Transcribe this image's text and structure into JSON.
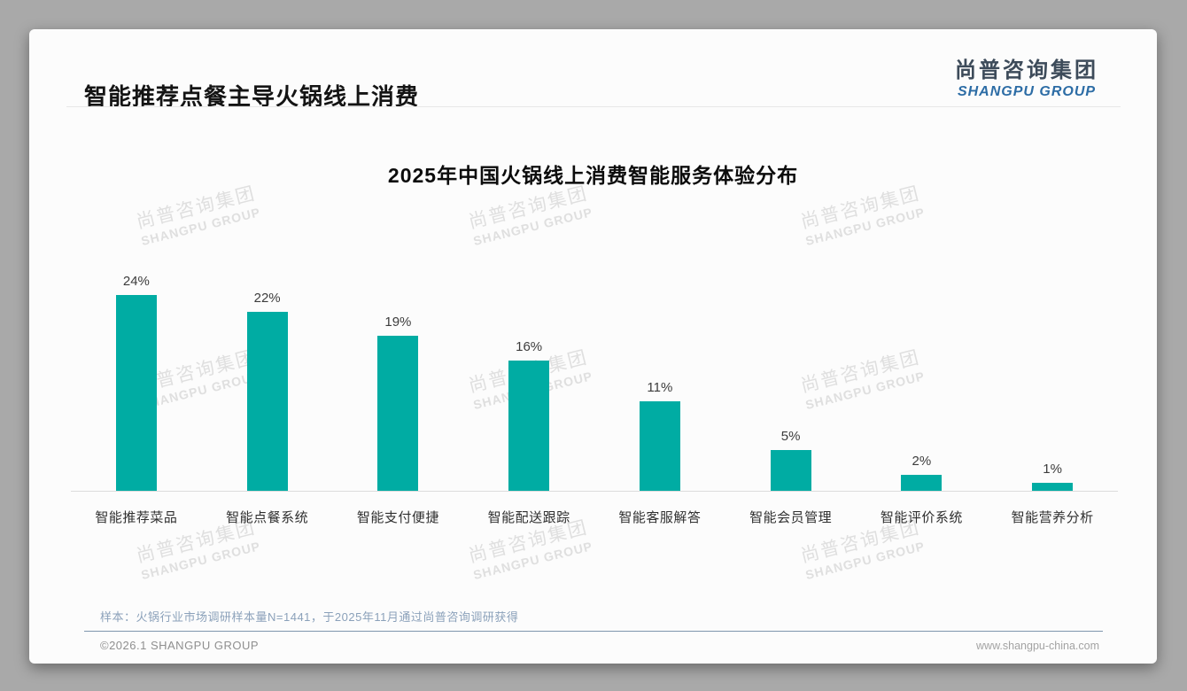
{
  "page": {
    "title": "智能推荐点餐主导火锅线上消费"
  },
  "logo": {
    "cn": "尚普咨询集团",
    "en": "SHANGPU GROUP"
  },
  "watermark": {
    "cn": "尚普咨询集团",
    "en": "SHANGPU GROUP"
  },
  "chart_data": {
    "type": "bar",
    "title": "2025年中国火锅线上消费智能服务体验分布",
    "categories": [
      "智能推荐菜品",
      "智能点餐系统",
      "智能支付便捷",
      "智能配送跟踪",
      "智能客服解答",
      "智能会员管理",
      "智能评价系统",
      "智能营养分析"
    ],
    "values": [
      24,
      22,
      19,
      16,
      11,
      5,
      2,
      1
    ],
    "unit": "%",
    "xlabel": "",
    "ylabel": "",
    "ylim": [
      0,
      26
    ],
    "grid": false,
    "legend": "none",
    "bar_color": "#00aca3",
    "value_labels": [
      "24%",
      "22%",
      "19%",
      "16%",
      "11%",
      "5%",
      "2%",
      "1%"
    ]
  },
  "footnote": "样本：火锅行业市场调研样本量N=1441，于2025年11月通过尚普咨询调研获得",
  "footer": {
    "left": "©2026.1 SHANGPU GROUP",
    "right": "www.shangpu-china.com"
  },
  "colors": {
    "bar": "#00aca3",
    "logo_en_blue": "#2c6ca5",
    "footnote_gray_blue": "#8ba1ba",
    "outer_background": "#a9a9a9"
  }
}
